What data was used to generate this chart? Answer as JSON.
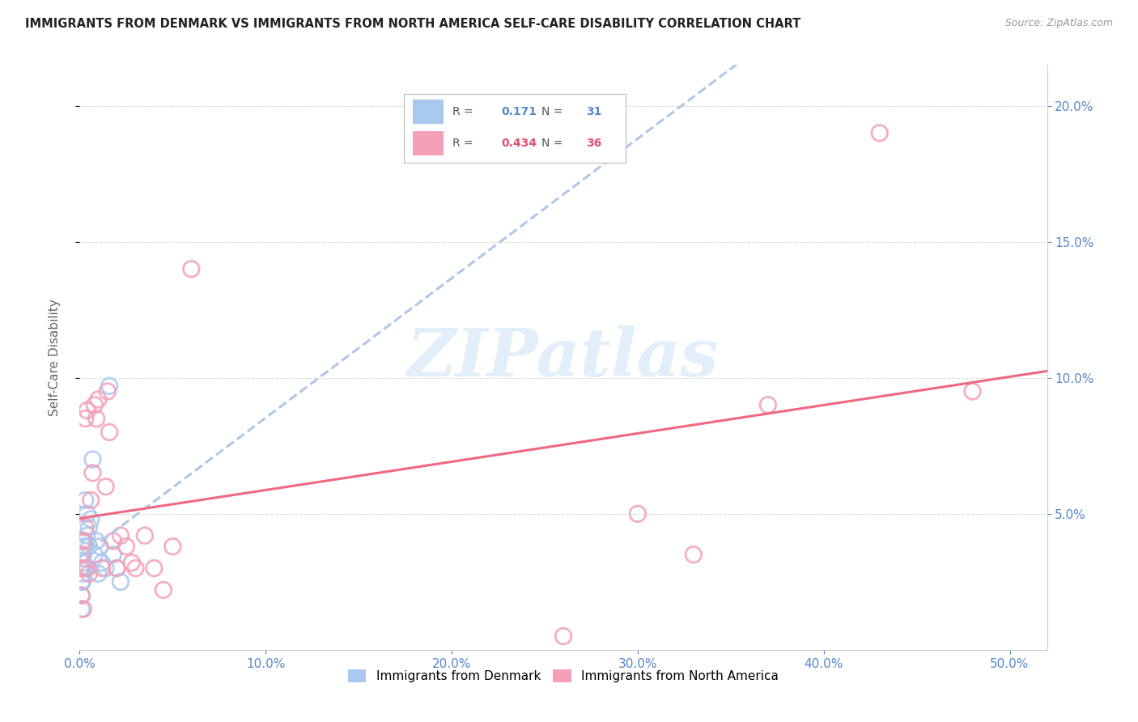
{
  "title": "IMMIGRANTS FROM DENMARK VS IMMIGRANTS FROM NORTH AMERICA SELF-CARE DISABILITY CORRELATION CHART",
  "source": "Source: ZipAtlas.com",
  "ylabel": "Self-Care Disability",
  "legend1_r": "0.171",
  "legend1_n": "31",
  "legend2_r": "0.434",
  "legend2_n": "36",
  "color_blue": "#A8C8F0",
  "color_pink": "#F4A0B8",
  "color_blue_line": "#B0C8E8",
  "color_pink_line": "#F06880",
  "watermark_color": "#D0E4F8",
  "xlim": [
    0,
    0.52
  ],
  "ylim": [
    0,
    0.215
  ],
  "xticks": [
    0,
    0.1,
    0.2,
    0.3,
    0.4,
    0.5
  ],
  "yticks": [
    0.05,
    0.1,
    0.15,
    0.2
  ],
  "denmark_x": [
    0.0005,
    0.001,
    0.001,
    0.001,
    0.001,
    0.0015,
    0.002,
    0.002,
    0.002,
    0.002,
    0.002,
    0.003,
    0.003,
    0.003,
    0.003,
    0.004,
    0.004,
    0.005,
    0.005,
    0.006,
    0.007,
    0.008,
    0.009,
    0.01,
    0.011,
    0.012,
    0.014,
    0.016,
    0.018,
    0.02,
    0.022
  ],
  "denmark_y": [
    0.03,
    0.015,
    0.02,
    0.025,
    0.03,
    0.025,
    0.028,
    0.03,
    0.032,
    0.035,
    0.04,
    0.03,
    0.038,
    0.04,
    0.055,
    0.042,
    0.05,
    0.045,
    0.038,
    0.048,
    0.07,
    0.035,
    0.04,
    0.028,
    0.038,
    0.032,
    0.03,
    0.097,
    0.035,
    0.03,
    0.025
  ],
  "northam_x": [
    0.0005,
    0.001,
    0.001,
    0.002,
    0.002,
    0.003,
    0.003,
    0.004,
    0.004,
    0.005,
    0.006,
    0.007,
    0.008,
    0.009,
    0.01,
    0.012,
    0.014,
    0.015,
    0.016,
    0.018,
    0.02,
    0.022,
    0.025,
    0.028,
    0.03,
    0.035,
    0.04,
    0.045,
    0.05,
    0.06,
    0.26,
    0.3,
    0.33,
    0.37,
    0.43,
    0.48
  ],
  "northam_y": [
    0.03,
    0.02,
    0.035,
    0.015,
    0.04,
    0.045,
    0.085,
    0.03,
    0.088,
    0.028,
    0.055,
    0.065,
    0.09,
    0.085,
    0.092,
    0.03,
    0.06,
    0.095,
    0.08,
    0.04,
    0.03,
    0.042,
    0.038,
    0.032,
    0.03,
    0.042,
    0.03,
    0.022,
    0.038,
    0.14,
    0.005,
    0.05,
    0.035,
    0.09,
    0.19,
    0.095
  ]
}
